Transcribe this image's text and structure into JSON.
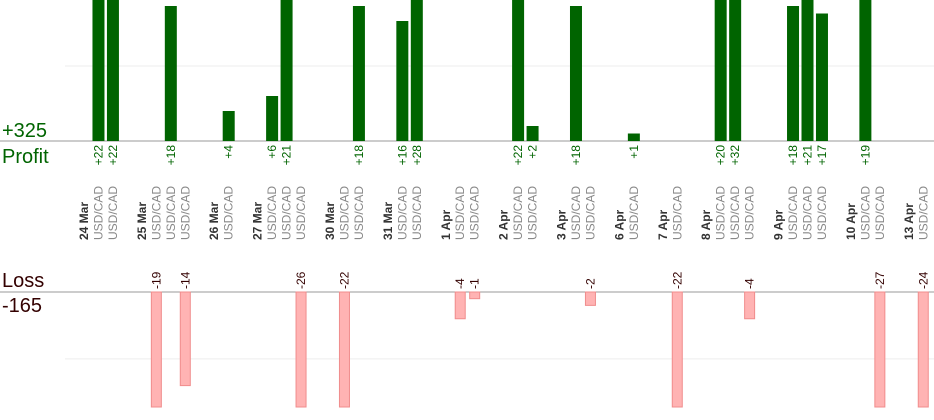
{
  "chart_data": {
    "type": "bar",
    "summary": {
      "profit_total": "+325",
      "profit_label": "Profit",
      "loss_label": "Loss",
      "loss_total": "-165"
    },
    "ylim": [
      0,
      18.8
    ],
    "yticks": [
      0,
      10
    ],
    "y2lim": [
      -17.2,
      0
    ],
    "y2ticks": [
      -10,
      0
    ],
    "profit_color": "#006400",
    "loss_color": "#ffb3b3",
    "days": [
      {
        "date": "24 Mar",
        "trades": [
          {
            "symbol": "USD/CAD",
            "value": 22,
            "value_label": "+22"
          },
          {
            "symbol": "USD/CAD",
            "value": 22,
            "value_label": "+22"
          }
        ]
      },
      {
        "date": "25 Mar",
        "trades": [
          {
            "symbol": "USD/CAD",
            "value": -19
          },
          {
            "symbol": "USD/CAD",
            "value": 18,
            "value_label": "+18"
          },
          {
            "symbol": "USD/CAD",
            "value": -14
          }
        ]
      },
      {
        "date": "26 Mar",
        "trades": [
          {
            "symbol": "USD/CAD",
            "value": 4,
            "value_label": "+4"
          }
        ]
      },
      {
        "date": "27 Mar",
        "trades": [
          {
            "symbol": "USD/CAD",
            "value": 6,
            "value_label": "+6"
          },
          {
            "symbol": "USD/CAD",
            "value": 21,
            "value_label": "+21"
          },
          {
            "symbol": "USD/CAD",
            "value": -26
          }
        ]
      },
      {
        "date": "30 Mar",
        "trades": [
          {
            "symbol": "USD/CAD",
            "value": -22
          },
          {
            "symbol": "USD/CAD",
            "value": 18,
            "value_label": "+18"
          }
        ]
      },
      {
        "date": "31 Mar",
        "trades": [
          {
            "symbol": "USD/CAD",
            "value": 16,
            "value_label": "+16"
          },
          {
            "symbol": "USD/CAD",
            "value": 28,
            "value_label": "+28"
          }
        ]
      },
      {
        "date": "1 Apr",
        "trades": [
          {
            "symbol": "USD/CAD",
            "value": -4
          },
          {
            "symbol": "USD/CAD",
            "value": -1
          }
        ]
      },
      {
        "date": "2 Apr",
        "trades": [
          {
            "symbol": "USD/CAD",
            "value": 22,
            "value_label": "+22"
          },
          {
            "symbol": "USD/CAD",
            "value": 2,
            "value_label": "+2"
          }
        ]
      },
      {
        "date": "3 Apr",
        "trades": [
          {
            "symbol": "USD/CAD",
            "value": 18,
            "value_label": "+18"
          },
          {
            "symbol": "USD/CAD",
            "value": -2
          }
        ]
      },
      {
        "date": "6 Apr",
        "trades": [
          {
            "symbol": "USD/CAD",
            "value": 1,
            "value_label": "+1"
          }
        ]
      },
      {
        "date": "7 Apr",
        "trades": [
          {
            "symbol": "USD/CAD",
            "value": -22
          }
        ]
      },
      {
        "date": "8 Apr",
        "trades": [
          {
            "symbol": "USD/CAD",
            "value": 20,
            "value_label": "+20"
          },
          {
            "symbol": "USD/CAD",
            "value": 32,
            "value_label": "+32"
          },
          {
            "symbol": "USD/CAD",
            "value": -4
          }
        ]
      },
      {
        "date": "9 Apr",
        "trades": [
          {
            "symbol": "USD/CAD",
            "value": 18,
            "value_label": "+18"
          },
          {
            "symbol": "USD/CAD",
            "value": 21,
            "value_label": "+21"
          },
          {
            "symbol": "USD/CAD",
            "value": 17,
            "value_label": "+17"
          }
        ]
      },
      {
        "date": "10 Apr",
        "trades": [
          {
            "symbol": "USD/CAD",
            "value": 19,
            "value_label": "+19"
          },
          {
            "symbol": "USD/CAD",
            "value": -27
          }
        ]
      },
      {
        "date": "13 Apr",
        "trades": [
          {
            "symbol": "USD/CAD",
            "value": -24
          }
        ]
      }
    ]
  }
}
